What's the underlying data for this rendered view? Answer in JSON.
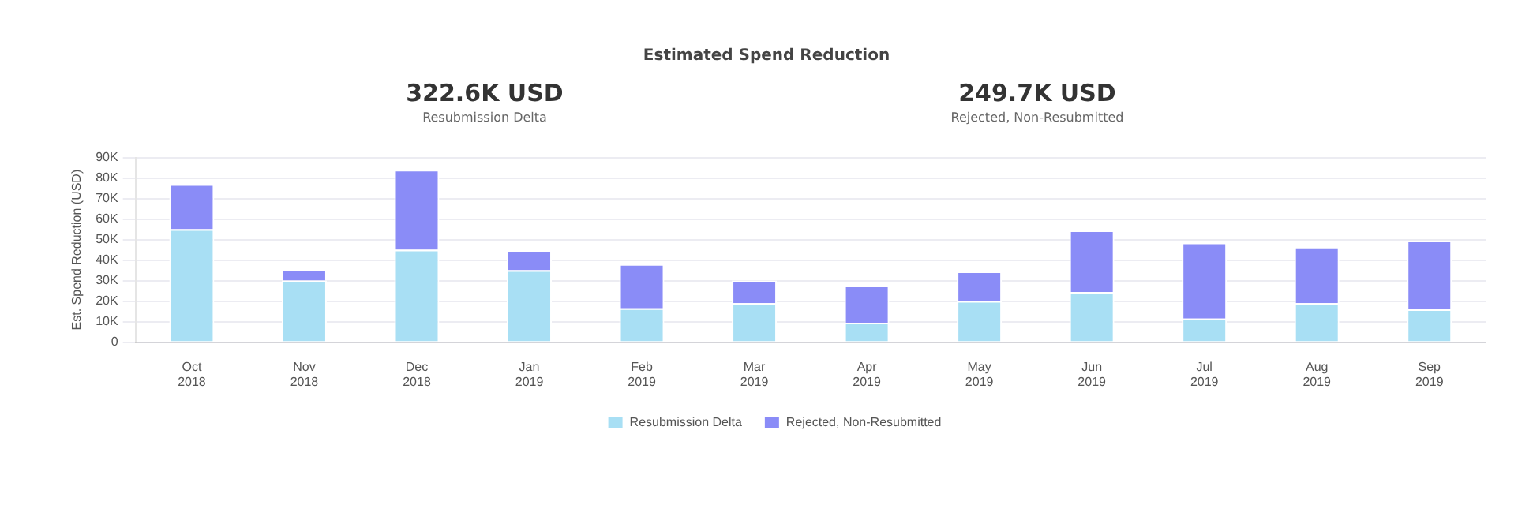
{
  "chart_data": {
    "type": "bar",
    "title": "Estimated Spend Reduction",
    "ylabel": "Est. Spend Reduction (USD)",
    "annotations": [
      "322.6K USD",
      "Resubmission Delta",
      "249.7K USD",
      "Rejected, Non-Resubmitted"
    ],
    "categories": [
      "Oct 2018",
      "Nov 2018",
      "Dec 2018",
      "Jan 2019",
      "Feb 2019",
      "Mar 2019",
      "Apr 2019",
      "May 2019",
      "Jun 2019",
      "Jul 2019",
      "Aug 2019",
      "Sep 2019"
    ],
    "stacked": true,
    "series": [
      {
        "name": "Resubmission Delta",
        "color": "#a8dff4",
        "values": [
          55000,
          30000,
          45000,
          35000,
          16500,
          19000,
          9500,
          20000,
          24500,
          11500,
          19000,
          16000
        ]
      },
      {
        "name": "Rejected, Non-Resubmitted",
        "color": "#8a8cf7",
        "values": [
          22000,
          5500,
          39000,
          9500,
          21500,
          11000,
          18000,
          14500,
          30000,
          37000,
          27500,
          33500
        ]
      }
    ],
    "ylim": [
      0,
      90000
    ],
    "yticks": [
      0,
      {
        "value": 10000,
        "label": "10K"
      },
      {
        "value": 20000,
        "label": "20K"
      },
      {
        "value": 30000,
        "label": "30K"
      },
      {
        "value": 40000,
        "label": "40K"
      },
      {
        "value": 50000,
        "label": "50K"
      },
      {
        "value": 60000,
        "label": "60K"
      },
      {
        "value": 70000,
        "label": "70K"
      },
      {
        "value": 80000,
        "label": "80K"
      },
      {
        "value": 90000,
        "label": "90K"
      }
    ],
    "grid": "y",
    "legend": "bottom"
  }
}
